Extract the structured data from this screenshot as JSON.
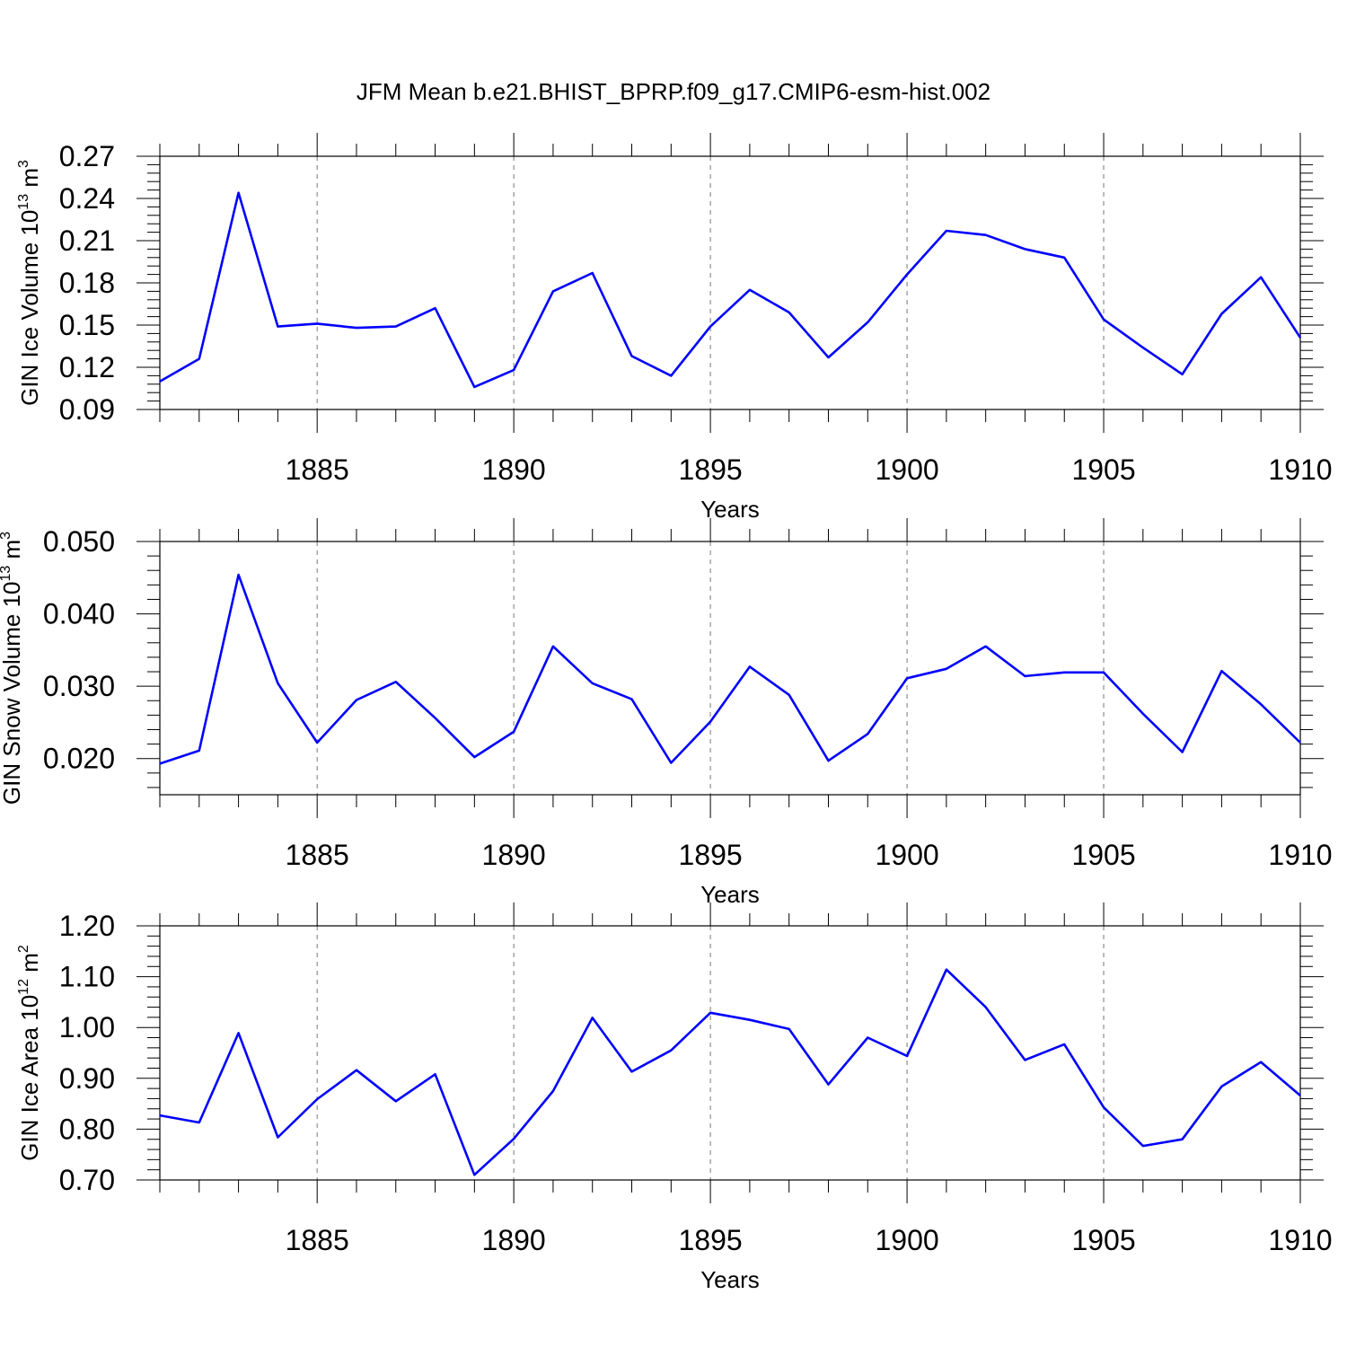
{
  "title": "JFM Mean b.e21.BHIST_BPRP.f09_g17.CMIP6-esm-hist.002",
  "line_color": "#0000ff",
  "chart_data": [
    {
      "type": "line",
      "xlabel": "Years",
      "ylabel": {
        "main": "GIN Ice Volume 10",
        "exp": "13",
        "unit": " m",
        "unit_exp": "3"
      },
      "xlim": [
        1881,
        1910
      ],
      "ylim": [
        0.09,
        0.27
      ],
      "xticks": [
        "1885",
        "1890",
        "1895",
        "1900",
        "1905",
        "1910"
      ],
      "yticks": [
        "0.09",
        "0.12",
        "0.15",
        "0.18",
        "0.21",
        "0.24",
        "0.27"
      ],
      "grid": "vertical dashed at major x ticks",
      "x": [
        1881,
        1882,
        1883,
        1884,
        1885,
        1886,
        1887,
        1888,
        1889,
        1890,
        1891,
        1892,
        1893,
        1894,
        1895,
        1896,
        1897,
        1898,
        1899,
        1900,
        1901,
        1902,
        1903,
        1904,
        1905,
        1906,
        1907,
        1908,
        1909,
        1910
      ],
      "series": [
        {
          "values": [
            0.11,
            0.126,
            0.244,
            0.149,
            0.151,
            0.148,
            0.149,
            0.162,
            0.106,
            0.118,
            0.174,
            0.187,
            0.128,
            0.114,
            0.149,
            0.175,
            0.159,
            0.127,
            0.152,
            0.186,
            0.217,
            0.214,
            0.204,
            0.198,
            0.154,
            0.134,
            0.115,
            0.158,
            0.184,
            0.141
          ]
        }
      ]
    },
    {
      "type": "line",
      "xlabel": "Years",
      "ylabel": {
        "main": "GIN Snow Volume 10",
        "exp": "13",
        "unit": " m",
        "unit_exp": "3"
      },
      "xlim": [
        1881,
        1910
      ],
      "ylim": [
        0.015,
        0.05
      ],
      "xticks": [
        "1885",
        "1890",
        "1895",
        "1900",
        "1905",
        "1910"
      ],
      "yticks": [
        "0.020",
        "0.030",
        "0.040",
        "0.050"
      ],
      "grid": "vertical dashed at major x ticks",
      "x": [
        1881,
        1882,
        1883,
        1884,
        1885,
        1886,
        1887,
        1888,
        1889,
        1890,
        1891,
        1892,
        1893,
        1894,
        1895,
        1896,
        1897,
        1898,
        1899,
        1900,
        1901,
        1902,
        1903,
        1904,
        1905,
        1906,
        1907,
        1908,
        1909,
        1910
      ],
      "series": [
        {
          "values": [
            0.0193,
            0.0211,
            0.0454,
            0.0304,
            0.0222,
            0.0281,
            0.0306,
            0.0256,
            0.0202,
            0.0237,
            0.0355,
            0.0304,
            0.0282,
            0.0194,
            0.0251,
            0.0327,
            0.0288,
            0.0197,
            0.0234,
            0.0311,
            0.0324,
            0.0355,
            0.0314,
            0.0319,
            0.0319,
            0.0262,
            0.0209,
            0.0321,
            0.0275,
            0.0222
          ]
        }
      ]
    },
    {
      "type": "line",
      "xlabel": "Years",
      "ylabel": {
        "main": "GIN Ice Area 10",
        "exp": "12",
        "unit": " m",
        "unit_exp": "2"
      },
      "xlim": [
        1881,
        1910
      ],
      "ylim": [
        0.7,
        1.2
      ],
      "xticks": [
        "1885",
        "1890",
        "1895",
        "1900",
        "1905",
        "1910"
      ],
      "yticks": [
        "0.70",
        "0.80",
        "0.90",
        "1.00",
        "1.10",
        "1.20"
      ],
      "grid": "vertical dashed at major x ticks",
      "x": [
        1881,
        1882,
        1883,
        1884,
        1885,
        1886,
        1887,
        1888,
        1889,
        1890,
        1891,
        1892,
        1893,
        1894,
        1895,
        1896,
        1897,
        1898,
        1899,
        1900,
        1901,
        1902,
        1903,
        1904,
        1905,
        1906,
        1907,
        1908,
        1909,
        1910
      ],
      "series": [
        {
          "values": [
            0.827,
            0.813,
            0.989,
            0.784,
            0.859,
            0.916,
            0.855,
            0.908,
            0.71,
            0.781,
            0.875,
            1.019,
            0.913,
            0.955,
            1.029,
            1.015,
            0.997,
            0.888,
            0.98,
            0.944,
            1.114,
            1.04,
            0.936,
            0.967,
            0.843,
            0.767,
            0.78,
            0.884,
            0.932,
            0.866
          ]
        }
      ]
    }
  ]
}
